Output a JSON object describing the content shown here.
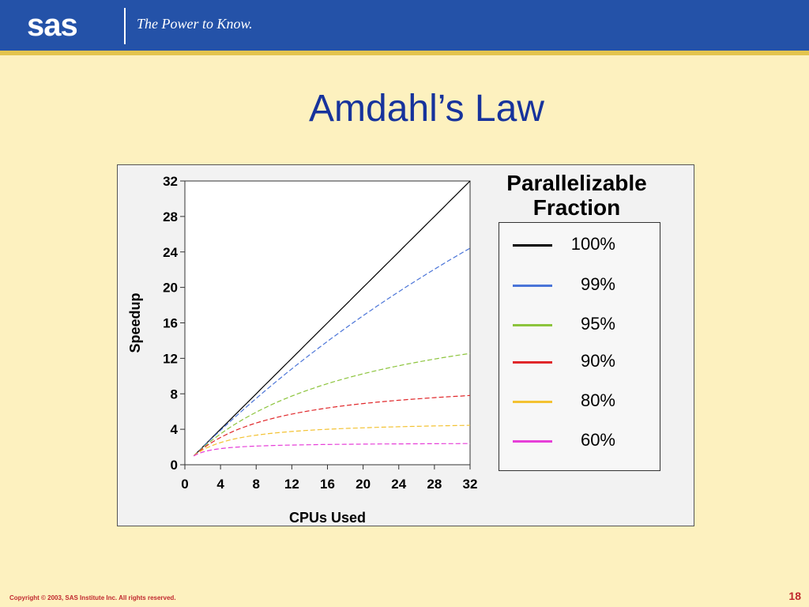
{
  "header": {
    "logo_text": "sas",
    "tagline": "The Power to Know."
  },
  "slide": {
    "title": "Amdahl’s Law"
  },
  "footer": {
    "copyright": "Copyright © 2003, SAS Institute Inc. All rights reserved.",
    "page_number": "18"
  },
  "colors": {
    "header_bg": "#2452a8",
    "header_rule": "#e3c44d",
    "slide_bg": "#fdf1bf",
    "title": "#17339c",
    "footer_text": "#c0282e"
  },
  "chart_data": {
    "type": "line",
    "xlabel": "CPUs Used",
    "ylabel": "Speedup",
    "xlim": [
      0,
      32
    ],
    "ylim": [
      0,
      32
    ],
    "xticks": [
      0,
      4,
      8,
      12,
      16,
      20,
      24,
      28,
      32
    ],
    "yticks": [
      0,
      4,
      8,
      12,
      16,
      20,
      24,
      28,
      32
    ],
    "x_start": 1,
    "x_end": 32,
    "legend_title": "Parallelizable Fraction",
    "legend_position": "right",
    "grid": false,
    "series": [
      {
        "name": "100%",
        "fraction": 1.0,
        "color": "#000000",
        "end_value": 32.0
      },
      {
        "name": "99%",
        "fraction": 0.99,
        "color": "#4a74d8",
        "end_value": 24.4
      },
      {
        "name": "95%",
        "fraction": 0.95,
        "color": "#8cc43c",
        "end_value": 12.5
      },
      {
        "name": "90%",
        "fraction": 0.9,
        "color": "#e0272a",
        "end_value": 7.8
      },
      {
        "name": "80%",
        "fraction": 0.8,
        "color": "#f3c232",
        "end_value": 4.4
      },
      {
        "name": "60%",
        "fraction": 0.6,
        "color": "#e63fd8",
        "end_value": 2.4
      }
    ]
  }
}
